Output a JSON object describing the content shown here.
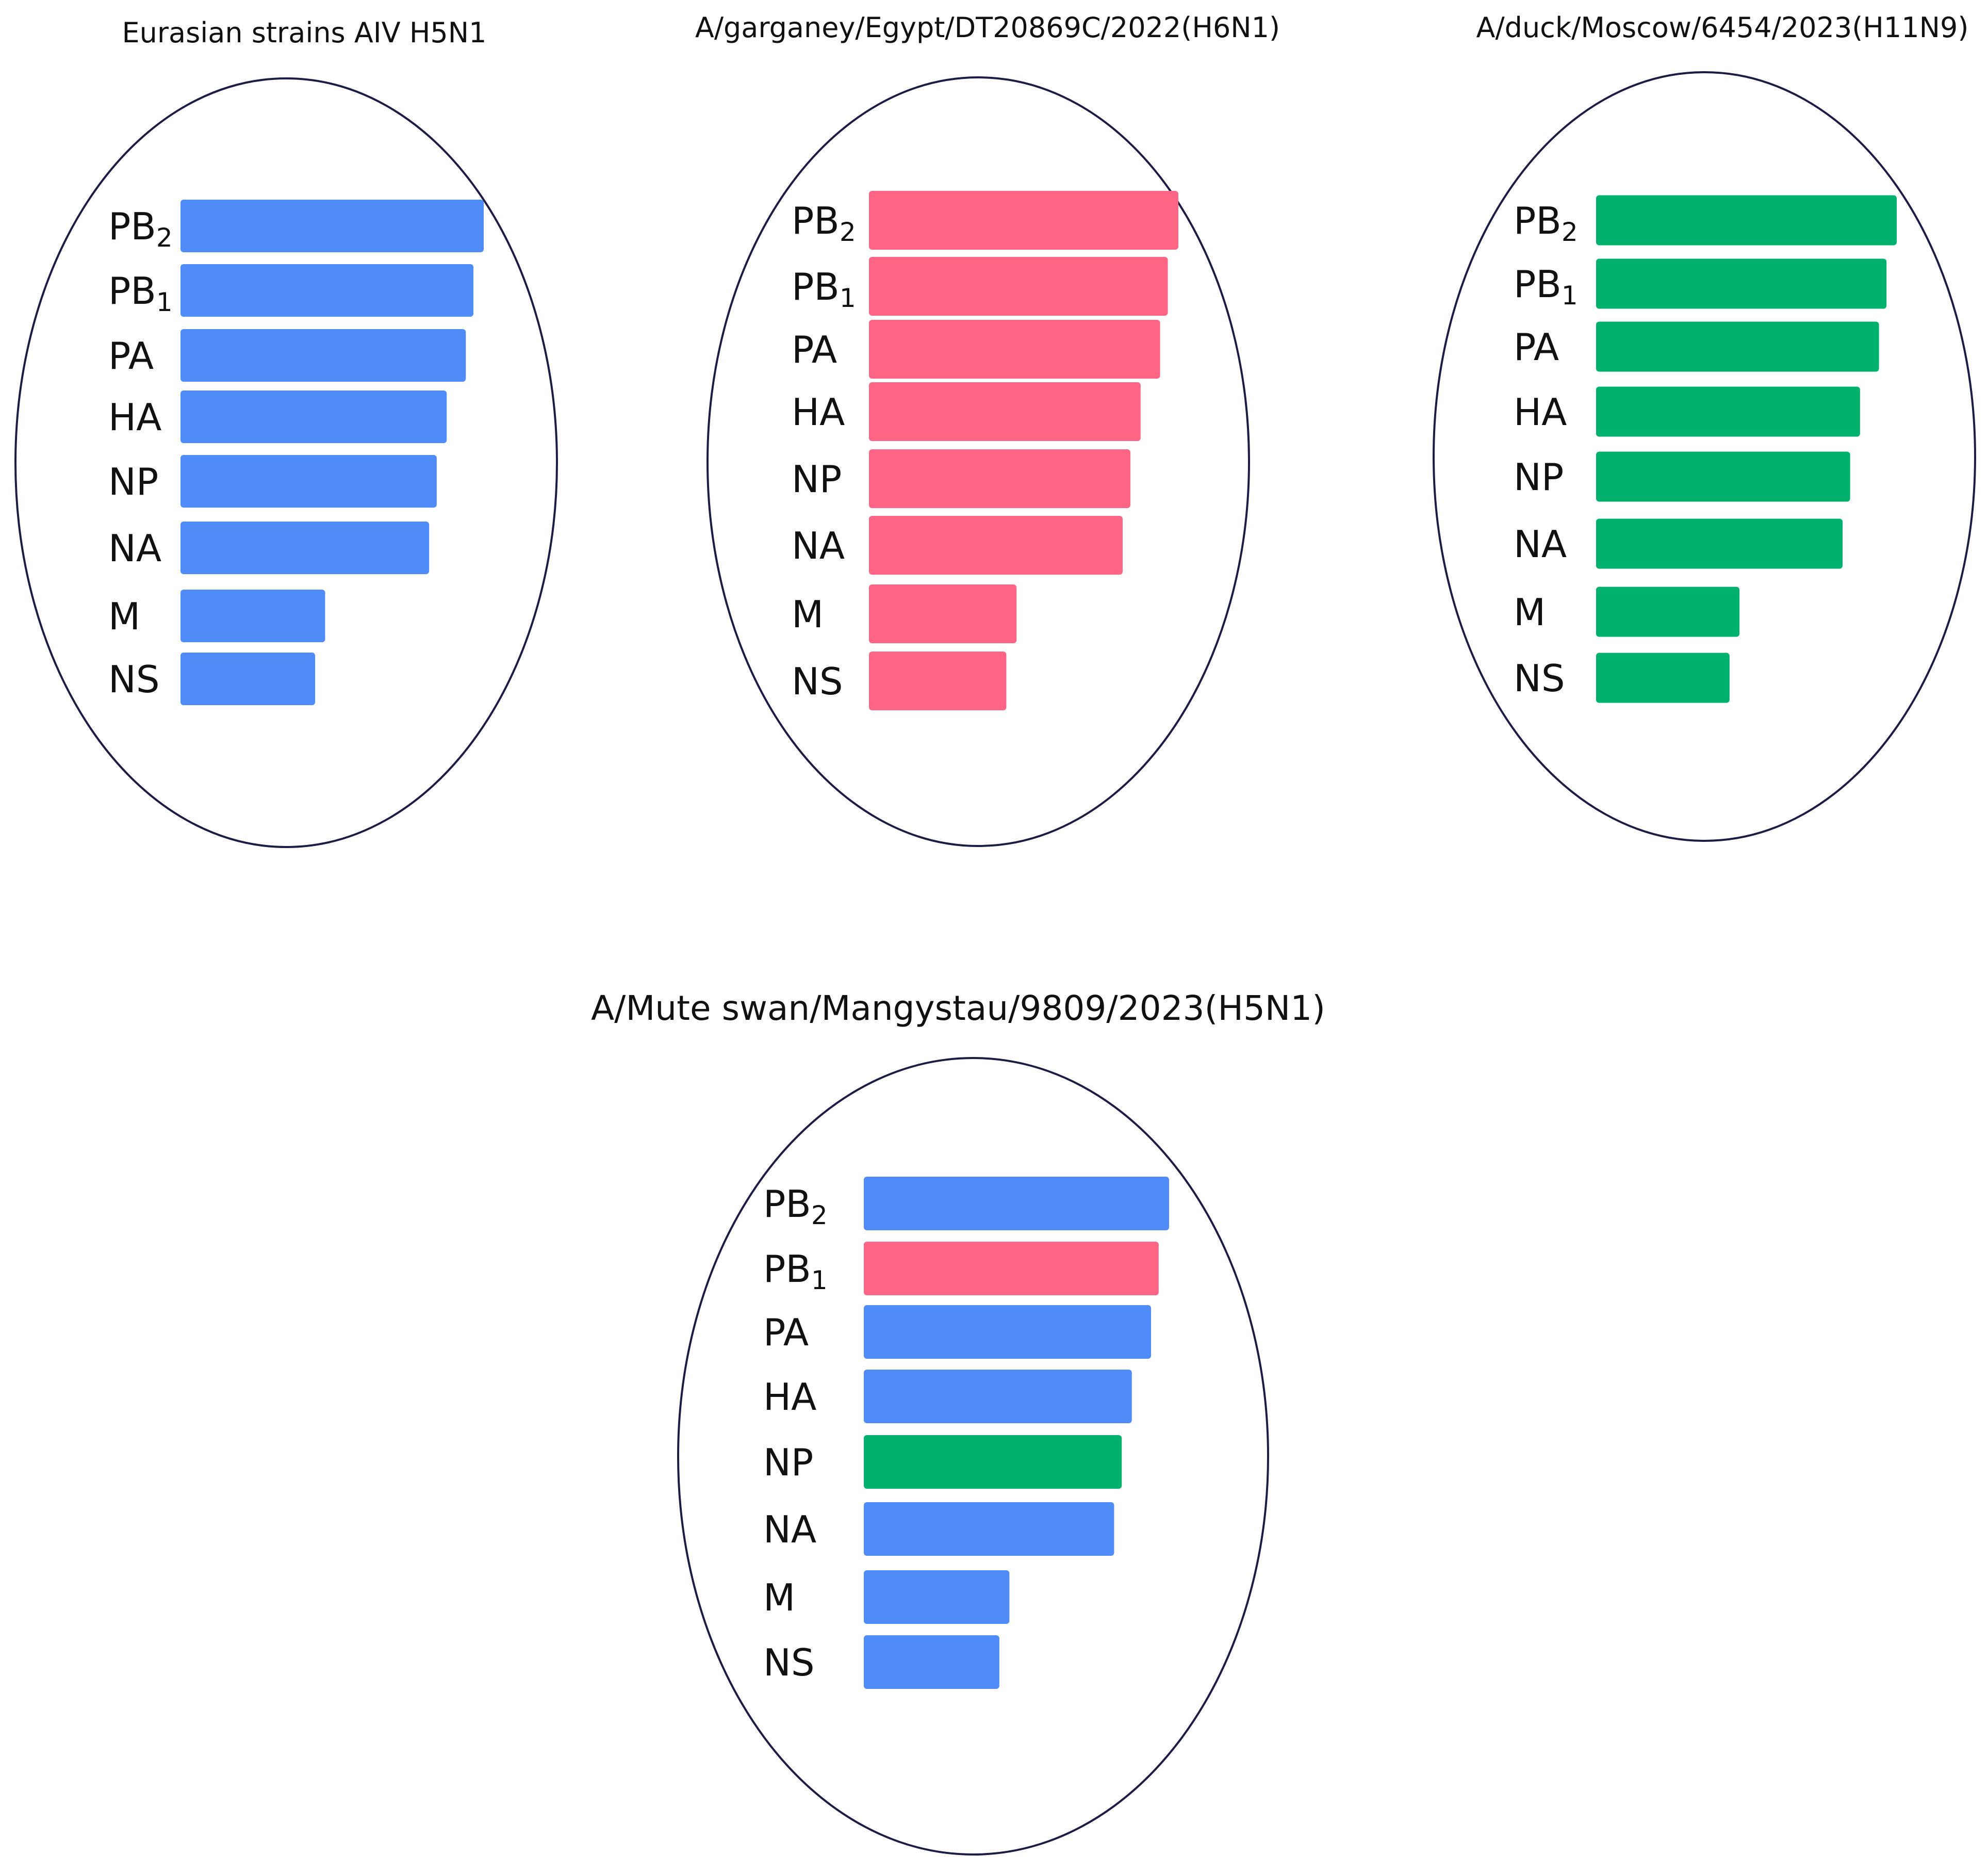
{
  "colors": {
    "blue": "#4f8cf7",
    "pink": "#ff6685",
    "green": "#00b16e",
    "outline": "#1c1c44"
  },
  "panels": [
    {
      "title": "Eurasian strains AIV H5N1",
      "segments": [
        {
          "name": "PB",
          "sub": "2",
          "length": 100,
          "color": "blue"
        },
        {
          "name": "PB",
          "sub": "1",
          "length": 96.6,
          "color": "blue"
        },
        {
          "name": "PA",
          "sub": "",
          "length": 94.1,
          "color": "blue"
        },
        {
          "name": "HA",
          "sub": "",
          "length": 87.8,
          "color": "blue"
        },
        {
          "name": "NP",
          "sub": "",
          "length": 84.5,
          "color": "blue"
        },
        {
          "name": "NA",
          "sub": "",
          "length": 82.0,
          "color": "blue"
        },
        {
          "name": "M",
          "sub": "",
          "length": 47.7,
          "color": "blue"
        },
        {
          "name": "NS",
          "sub": "",
          "length": 44.4,
          "color": "blue"
        }
      ]
    },
    {
      "title": "A/garganey/Egypt/DT20869C/2022(H6N1)",
      "segments": [
        {
          "name": "PB",
          "sub": "2",
          "length": 100,
          "color": "pink"
        },
        {
          "name": "PB",
          "sub": "1",
          "length": 96.6,
          "color": "pink"
        },
        {
          "name": "PA",
          "sub": "",
          "length": 94.1,
          "color": "pink"
        },
        {
          "name": "HA",
          "sub": "",
          "length": 87.8,
          "color": "pink"
        },
        {
          "name": "NP",
          "sub": "",
          "length": 84.5,
          "color": "pink"
        },
        {
          "name": "NA",
          "sub": "",
          "length": 82.0,
          "color": "pink"
        },
        {
          "name": "M",
          "sub": "",
          "length": 47.7,
          "color": "pink"
        },
        {
          "name": "NS",
          "sub": "",
          "length": 44.4,
          "color": "pink"
        }
      ]
    },
    {
      "title": "A/duck/Moscow/6454/2023(H11N9)",
      "segments": [
        {
          "name": "PB",
          "sub": "2",
          "length": 100,
          "color": "green"
        },
        {
          "name": "PB",
          "sub": "1",
          "length": 96.6,
          "color": "green"
        },
        {
          "name": "PA",
          "sub": "",
          "length": 94.1,
          "color": "green"
        },
        {
          "name": "HA",
          "sub": "",
          "length": 87.8,
          "color": "green"
        },
        {
          "name": "NP",
          "sub": "",
          "length": 84.5,
          "color": "green"
        },
        {
          "name": "NA",
          "sub": "",
          "length": 82.0,
          "color": "green"
        },
        {
          "name": "M",
          "sub": "",
          "length": 47.7,
          "color": "green"
        },
        {
          "name": "NS",
          "sub": "",
          "length": 44.4,
          "color": "green"
        }
      ]
    },
    {
      "title": "A/Mute swan/Mangystau/9809/2023(H5N1)",
      "segments": [
        {
          "name": "PB",
          "sub": "2",
          "length": 100,
          "color": "blue"
        },
        {
          "name": "PB",
          "sub": "1",
          "length": 96.6,
          "color": "pink"
        },
        {
          "name": "PA",
          "sub": "",
          "length": 94.1,
          "color": "blue"
        },
        {
          "name": "HA",
          "sub": "",
          "length": 87.8,
          "color": "blue"
        },
        {
          "name": "NP",
          "sub": "",
          "length": 84.5,
          "color": "green"
        },
        {
          "name": "NA",
          "sub": "",
          "length": 82.0,
          "color": "blue"
        },
        {
          "name": "M",
          "sub": "",
          "length": 47.7,
          "color": "blue"
        },
        {
          "name": "NS",
          "sub": "",
          "length": 44.4,
          "color": "blue"
        }
      ]
    }
  ]
}
